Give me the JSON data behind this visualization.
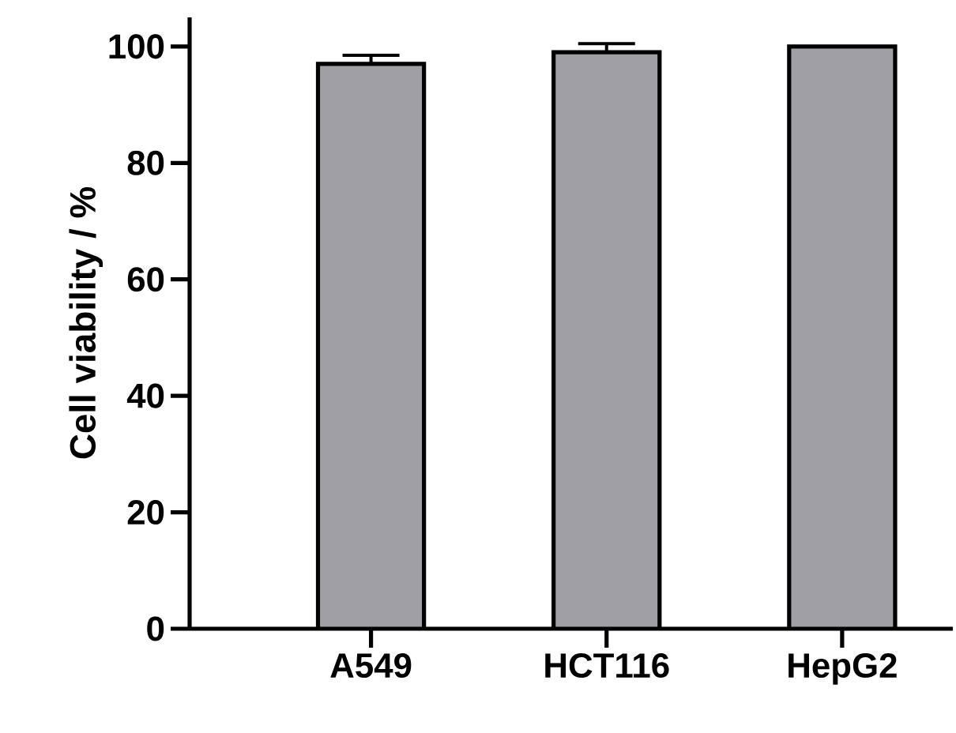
{
  "chart_data": {
    "type": "bar",
    "ylabel": "Cell viability / %",
    "categories": [
      "A549",
      "HCT116",
      "HepG2"
    ],
    "values": [
      97,
      99,
      100
    ],
    "errors": [
      1.5,
      1.5,
      null
    ],
    "color": "#a09fa4",
    "ylim": [
      0,
      105
    ],
    "yticks": [
      0,
      20,
      40,
      60,
      80,
      100
    ],
    "grid": false
  }
}
